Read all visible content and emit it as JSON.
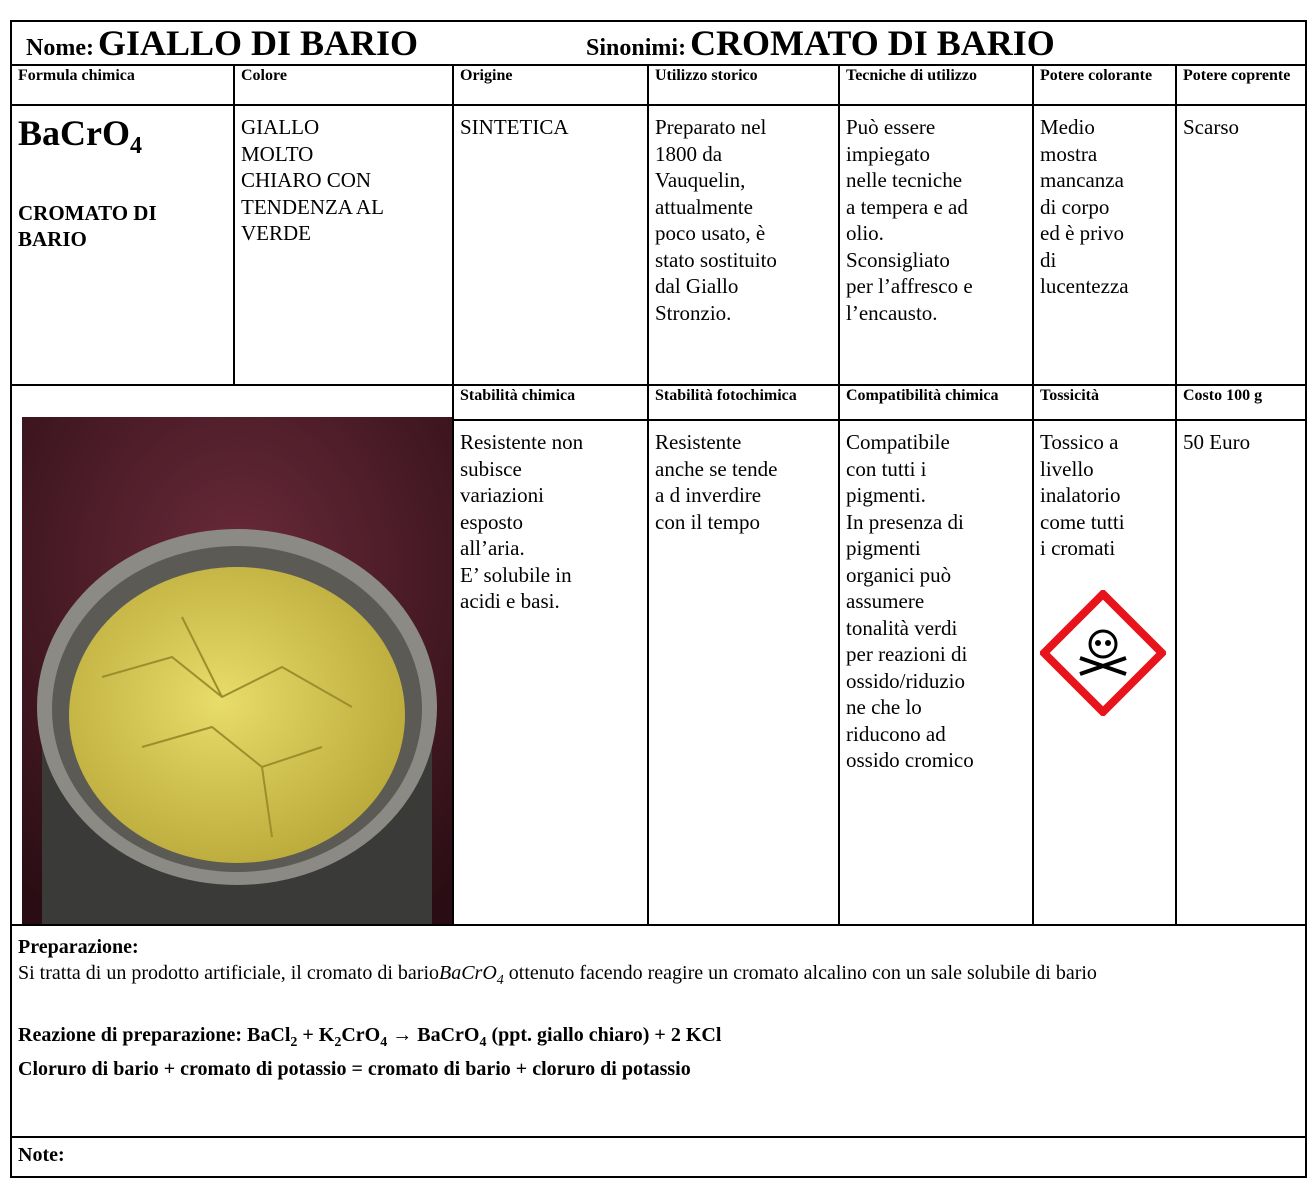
{
  "header": {
    "name_label": "Nome:",
    "name": "GIALLO DI BARIO",
    "synonyms_label": "Sinonimi:",
    "synonyms": "CROMATO DI BARIO"
  },
  "table": {
    "headers": [
      "Formula chimica",
      "Colore",
      "Origine",
      "Utilizzo storico",
      "Tecniche di utilizzo",
      "Potere colorante",
      "Potere coprente"
    ],
    "formula": [
      {
        "text": "BaCrO"
      },
      {
        "text": "4",
        "sub": true
      }
    ],
    "formula_name": "CROMATO DI BARIO",
    "cells": [
      [
        "GIALLO",
        "MOLTO",
        "CHIARO CON",
        "TENDENZA AL",
        "VERDE"
      ],
      [
        "SINTETICA"
      ],
      [
        "Preparato nel",
        "1800 da",
        "Vauquelin,",
        "attualmente",
        "poco usato, è",
        "stato sostituito",
        "dal Giallo",
        "Stronzio."
      ],
      [
        "Può essere",
        "impiegato",
        "nelle tecniche",
        "a tempera e ad",
        "olio.",
        "Sconsigliato",
        "per l’affresco e",
        "l’encausto."
      ],
      [
        "Medio",
        "mostra",
        "mancanza",
        "di corpo",
        "ed è privo",
        "di",
        "lucentezza"
      ],
      [
        "Scarso"
      ]
    ],
    "headers_2": [
      "Stabilità chimica",
      "Stabilità fotochimica",
      "Compatibilità chimica",
      "Tossicità",
      "Costo 100 g"
    ],
    "cells_2": [
      [
        "Resistente non",
        "subisce",
        "variazioni",
        "esposto",
        "all’aria.",
        "E’ solubile in",
        "acidi e basi."
      ],
      [
        "Resistente",
        "anche se tende",
        "a d inverdire",
        "con il tempo"
      ],
      [
        "Compatibile",
        "con tutti i",
        "pigmenti.",
        "In presenza di",
        "pigmenti",
        "organici può",
        "assumere",
        "tonalità verdi",
        "per reazioni di",
        "ossido/riduzio",
        "ne che lo",
        "riducono ad",
        "ossido cromico"
      ],
      [
        "Tossico a",
        "livello",
        "inalatorio",
        "come tutti",
        "i cromati"
      ],
      [
        "50 Euro"
      ]
    ]
  },
  "preparation": {
    "label": "Preparazione:",
    "text": [
      {
        "text": "Si tratta di un prodotto artificiale, il cromato di bario"
      },
      {
        "text": "BaCrO",
        "italic": true
      },
      {
        "text": "4",
        "italic": true,
        "sub": true
      },
      {
        "text": " ottenuto facendo reagire un cromato alcalino con un sale solubile di bario"
      }
    ],
    "reaction": [
      {
        "text": "Reazione di preparazione: BaCl"
      },
      {
        "text": "2",
        "sub": true
      },
      {
        "text": "  +  K"
      },
      {
        "text": "2",
        "sub": true
      },
      {
        "text": "CrO"
      },
      {
        "text": "4",
        "sub": true
      },
      {
        "text": "  → BaCrO"
      },
      {
        "text": "4",
        "sub": true
      },
      {
        "text": " (ppt. giallo chiaro) +  2 KCl"
      }
    ],
    "reaction_words": "Cloruro di bario + cromato di potassio = cromato di bario + cloruro di potassio"
  },
  "note": {
    "label": "Note:"
  }
}
